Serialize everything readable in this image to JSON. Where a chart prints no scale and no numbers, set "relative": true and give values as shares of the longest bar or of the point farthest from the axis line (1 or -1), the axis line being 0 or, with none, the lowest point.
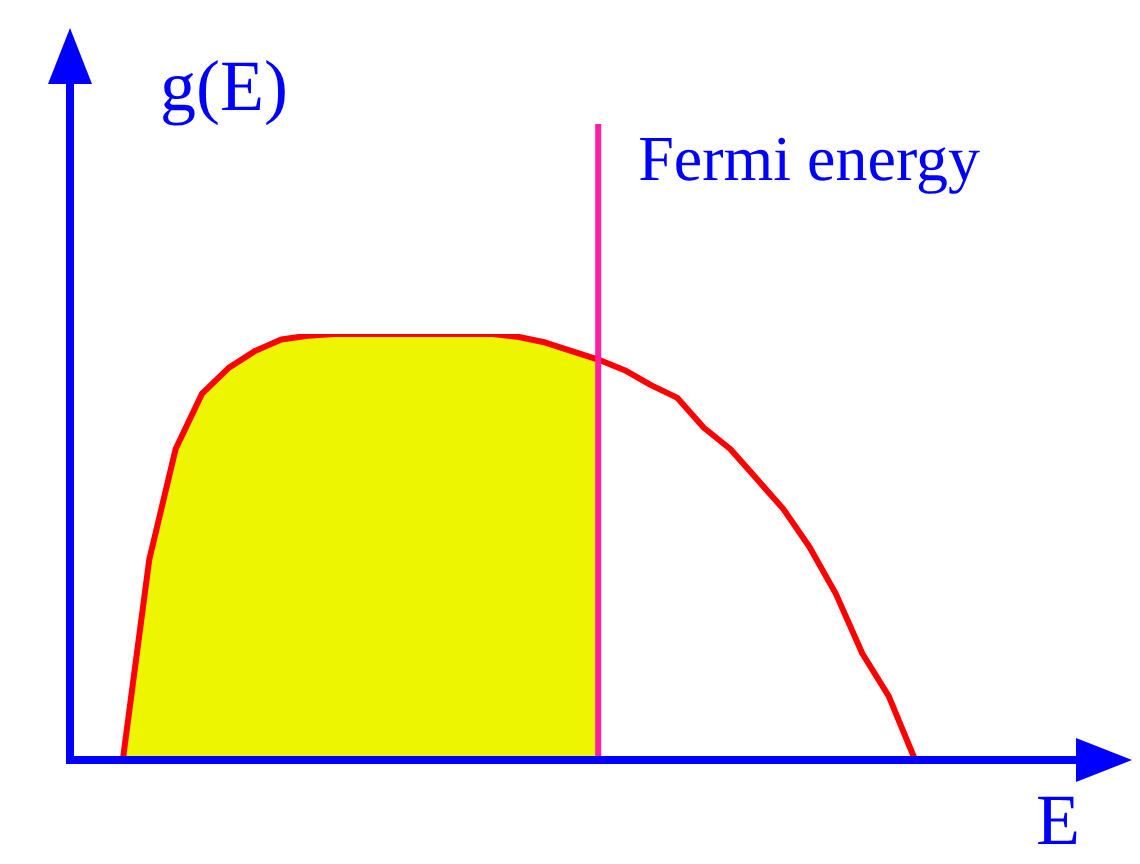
{
  "chart_data": {
    "type": "line",
    "relative": true,
    "xlabel": "E",
    "ylabel": "g(E)",
    "tick_labels": false,
    "grid": false,
    "legend": false,
    "marker": "none",
    "categories": [
      null,
      null,
      null,
      null,
      null,
      null,
      null,
      null,
      null,
      null,
      null,
      null,
      null,
      null,
      null,
      null,
      null,
      null,
      null,
      null,
      null,
      null,
      null,
      null,
      null,
      null,
      null,
      null,
      null,
      null,
      null,
      null,
      null,
      null,
      null,
      null,
      null,
      null,
      null,
      null
    ],
    "series": [
      {
        "color": "#ff0000",
        "values": [
          null,
          null,
          0,
          0.47,
          0.73,
          0.86,
          0.92,
          0.96,
          0.987,
          0.996,
          1,
          1,
          1,
          1,
          1,
          1,
          1,
          0.993,
          0.98,
          0.96,
          0.94,
          0.915,
          0.88,
          0.85,
          0.78,
          0.73,
          0.66,
          0.59,
          0.5,
          0.39,
          0.25,
          0.15,
          0,
          null,
          null,
          null,
          null,
          null,
          null,
          null
        ]
      }
    ],
    "annotations": [
      "Fermi energy"
    ]
  }
}
